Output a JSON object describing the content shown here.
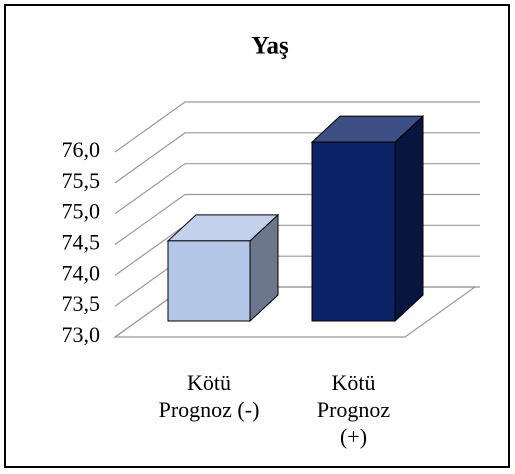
{
  "chart_data": {
    "type": "bar3d",
    "title": "Yaş",
    "categories": [
      [
        "Kötü",
        "Prognoz (-)"
      ],
      [
        "Kötü",
        "Prognoz",
        "(+)"
      ]
    ],
    "series": [
      {
        "colors": [
          "#b4c6e7",
          "#0b2468"
        ],
        "values": [
          74.3,
          75.9
        ]
      }
    ],
    "ylim": [
      73,
      76
    ],
    "yticks": [
      {
        "value": 73,
        "label": "73,0"
      },
      {
        "value": 73.5,
        "label": "73,5"
      },
      {
        "value": 74,
        "label": "74,0"
      },
      {
        "value": 74.5,
        "label": "74,5"
      },
      {
        "value": 75,
        "label": "75,0"
      },
      {
        "value": 75.5,
        "label": "75,5"
      },
      {
        "value": 76,
        "label": "76,0"
      }
    ],
    "grid": true
  }
}
